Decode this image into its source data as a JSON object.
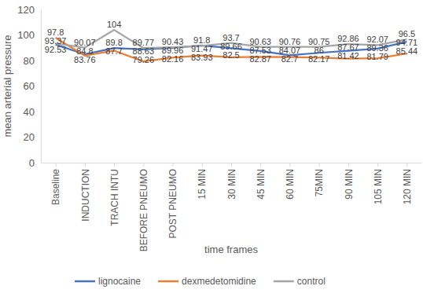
{
  "chart_data": {
    "type": "line",
    "x_label": "time frames",
    "y_label": "mean arterial pressure",
    "categories": [
      "Baseline",
      "INDUCTION",
      "TRACH INTU",
      "BEFORE PNEUMO",
      "POST PNEUMO",
      "15 MIN",
      "30 MIN",
      "45 MIN",
      "60 MIN",
      "75MIN",
      "90 MIN",
      "105 MIN",
      "120 MIN"
    ],
    "series": [
      {
        "name": "lignocaine",
        "color": "#4472c4",
        "values": [
          92.53,
          84.8,
          89.8,
          88.63,
          89.96,
          91.8,
          89.66,
          87.53,
          84.07,
          86,
          87.67,
          89.36,
          94.71
        ]
      },
      {
        "name": "dexmedetomidine",
        "color": "#ed7d31",
        "values": [
          97.8,
          83.76,
          87.7,
          79.26,
          82.16,
          83.93,
          82.5,
          82.87,
          82.7,
          82.17,
          81.42,
          81.79,
          85.44
        ]
      },
      {
        "name": "control",
        "color": "#a5a5a5",
        "values": [
          93.37,
          90.07,
          104,
          89.77,
          90.43,
          91.47,
          93.7,
          90.63,
          90.76,
          90.75,
          92.86,
          92.07,
          96.5
        ]
      }
    ],
    "ylim": [
      0,
      120
    ],
    "yticks": [
      0,
      20,
      40,
      60,
      80,
      100,
      120
    ],
    "grid": false,
    "legend": "bottom",
    "data_labels": true
  }
}
